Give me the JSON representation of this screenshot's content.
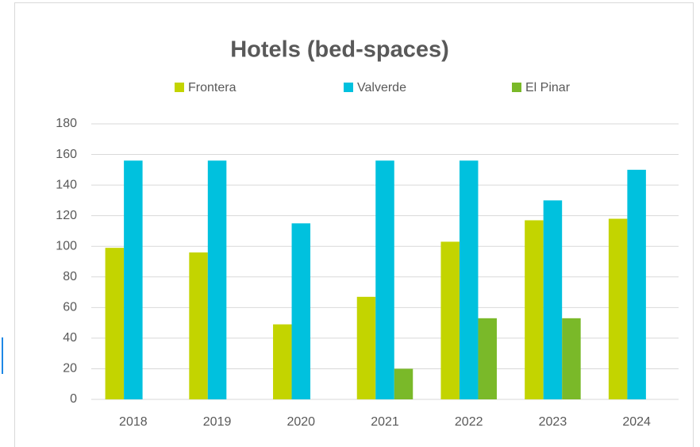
{
  "chart_data": {
    "type": "bar",
    "title": "Hotels (bed-spaces)",
    "categories": [
      "2018",
      "2019",
      "2020",
      "2021",
      "2022",
      "2023",
      "2024"
    ],
    "series": [
      {
        "name": "Frontera",
        "color": "#c3d400",
        "values": [
          99,
          96,
          49,
          67,
          103,
          117,
          118
        ]
      },
      {
        "name": "Valverde",
        "color": "#00c1de",
        "values": [
          156,
          156,
          115,
          156,
          156,
          130,
          150
        ]
      },
      {
        "name": "El Pinar",
        "color": "#7ab929",
        "values": [
          0,
          0,
          0,
          20,
          53,
          53,
          0
        ]
      }
    ],
    "ylim": [
      0,
      180
    ],
    "yticks": [
      0,
      20,
      40,
      60,
      80,
      100,
      120,
      140,
      160,
      180
    ],
    "grid": true,
    "legend": "top"
  }
}
